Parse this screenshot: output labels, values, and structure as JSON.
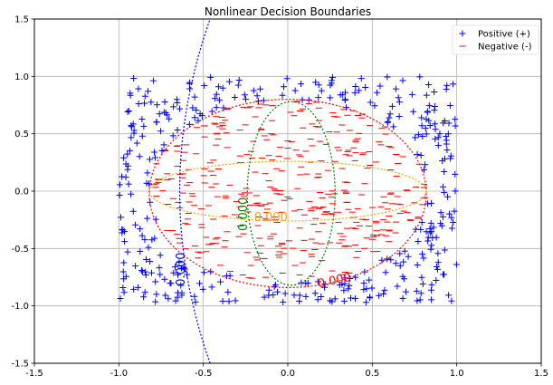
{
  "chart_data": {
    "type": "scatter",
    "title": "Nonlinear Decision Boundaries",
    "xlabel": "",
    "ylabel": "",
    "xlim": [
      -1.5,
      1.5
    ],
    "ylim": [
      -1.5,
      1.5
    ],
    "xticks": [
      "-1.5",
      "-1.0",
      "-0.5",
      "0.0",
      "0.5",
      "1.0",
      "1.5"
    ],
    "yticks": [
      "-1.5",
      "-1.0",
      "-0.5",
      "0.0",
      "0.5",
      "1.0",
      "1.5"
    ],
    "grid": true,
    "legend_position": "top-right",
    "series": [
      {
        "name": "Positive (+)",
        "marker": "+",
        "color": "#0000ff"
      },
      {
        "name": "Negative (-)",
        "marker": "_",
        "color": "#ff0000"
      }
    ],
    "point_distribution": {
      "x_range": [
        -1.0,
        1.0
      ],
      "y_range": [
        -0.97,
        1.0
      ],
      "negative_region": {
        "type": "ellipse",
        "center": [
          0.0,
          0.0
        ],
        "semi_axes": [
          0.82,
          0.8
        ]
      },
      "approx_positive_count": 380,
      "approx_negative_count": 420
    },
    "boundaries": [
      {
        "color": "#ff0000",
        "kind": "ellipse",
        "center": [
          0.0,
          -0.02
        ],
        "semi_axes": [
          0.82,
          0.82
        ],
        "label": "0.000",
        "label_at": [
          0.28,
          -0.81
        ]
      },
      {
        "color": "#ffa500",
        "kind": "ellipse",
        "center": [
          0.0,
          0.0
        ],
        "semi_axes": [
          0.82,
          0.26
        ],
        "label": "0.000",
        "label_at": [
          -0.1,
          -0.26
        ]
      },
      {
        "color": "#008000",
        "kind": "ellipse",
        "center": [
          0.02,
          -0.02
        ],
        "semi_axes": [
          0.26,
          0.8
        ],
        "label": "0.000",
        "label_at": [
          -0.24,
          -0.2
        ],
        "label_rotation": -90
      },
      {
        "color": "#0000ff",
        "kind": "parabola",
        "vertex": [
          -0.64,
          0.0
        ],
        "curvature": 0.08,
        "label": "0.000",
        "label_at": [
          -0.61,
          -0.68
        ],
        "label_rotation": -90
      }
    ]
  }
}
